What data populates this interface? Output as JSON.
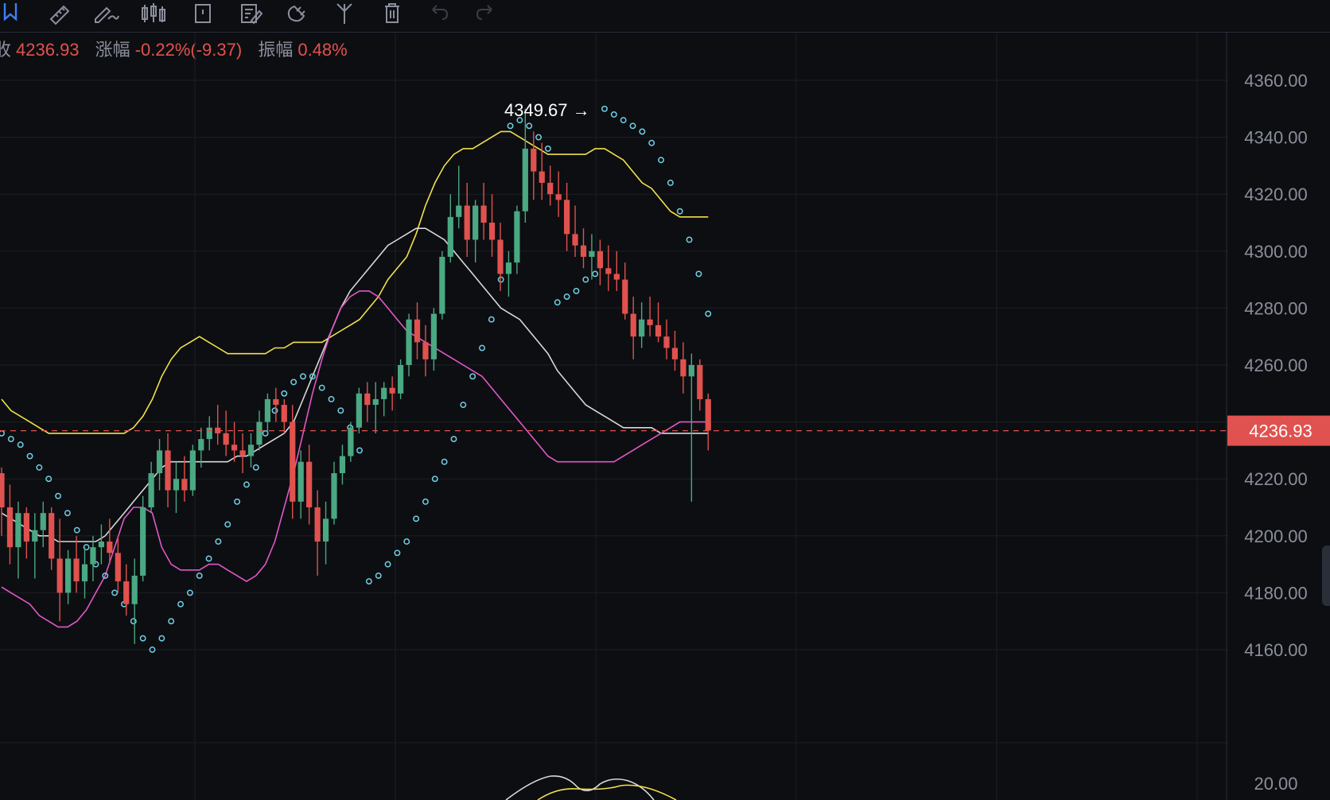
{
  "toolbar": {
    "icons": [
      "bookmark-icon",
      "ruler-icon",
      "pencil-wave-icon",
      "candles-icon",
      "rectangle-icon",
      "note-edit-icon",
      "magnet-icon",
      "fork-icon",
      "trash-icon",
      "undo-icon",
      "redo-icon"
    ]
  },
  "info": {
    "close_label": "收",
    "close_value": "4236.93",
    "change_label": "涨幅",
    "change_value": "-0.22%(-9.37)",
    "amplitude_label": "振幅",
    "amplitude_value": "0.48%"
  },
  "colors": {
    "background": "#0d0e11",
    "grid": "#1c1f26",
    "up": "#4aa883",
    "down": "#e0524f",
    "upper_band": "#f2e04b",
    "middle_band": "#d8d8d8",
    "lower_band": "#e157c9",
    "sar": "#6fd0e6",
    "axis_text": "#8a8f9c",
    "price_tag": "#e0524f"
  },
  "chart_data": {
    "type": "candlestick",
    "y_axis": {
      "ticks": [
        4360,
        4340,
        4320,
        4300,
        4280,
        4260,
        4240,
        4220,
        4200,
        4180,
        4160
      ],
      "tick_labels": [
        "4360.00",
        "4340.00",
        "4320.00",
        "4300.00",
        "4280.00",
        "4260.00",
        "4220.00",
        "4200.00",
        "4180.00",
        "4160.00"
      ],
      "ylim": [
        4145,
        4375
      ],
      "position": "right"
    },
    "current_price": 4236.93,
    "current_price_label": "4236.93",
    "high_marker": {
      "value": 4349.67,
      "label": "4349.67 →"
    },
    "lower_pane": {
      "tick_label": "20.00"
    },
    "candles": [
      [
        4222,
        4224,
        4200,
        4210
      ],
      [
        4210,
        4218,
        4190,
        4196
      ],
      [
        4196,
        4212,
        4185,
        4208
      ],
      [
        4208,
        4210,
        4192,
        4198
      ],
      [
        4198,
        4208,
        4185,
        4202
      ],
      [
        4202,
        4212,
        4196,
        4208
      ],
      [
        4208,
        4210,
        4188,
        4192
      ],
      [
        4192,
        4206,
        4170,
        4180
      ],
      [
        4180,
        4195,
        4176,
        4192
      ],
      [
        4192,
        4200,
        4180,
        4184
      ],
      [
        4184,
        4196,
        4178,
        4190
      ],
      [
        4190,
        4200,
        4184,
        4196
      ],
      [
        4196,
        4204,
        4190,
        4198
      ],
      [
        4198,
        4206,
        4190,
        4194
      ],
      [
        4194,
        4200,
        4180,
        4184
      ],
      [
        4184,
        4190,
        4172,
        4176
      ],
      [
        4176,
        4192,
        4162,
        4186
      ],
      [
        4186,
        4214,
        4184,
        4210
      ],
      [
        4210,
        4226,
        4208,
        4222
      ],
      [
        4222,
        4234,
        4216,
        4230
      ],
      [
        4230,
        4236,
        4210,
        4216
      ],
      [
        4216,
        4226,
        4208,
        4220
      ],
      [
        4220,
        4228,
        4212,
        4216
      ],
      [
        4216,
        4232,
        4214,
        4230
      ],
      [
        4230,
        4238,
        4224,
        4234
      ],
      [
        4234,
        4242,
        4230,
        4238
      ],
      [
        4238,
        4246,
        4232,
        4236
      ],
      [
        4236,
        4244,
        4228,
        4232
      ],
      [
        4232,
        4240,
        4226,
        4230
      ],
      [
        4230,
        4236,
        4222,
        4228
      ],
      [
        4228,
        4236,
        4224,
        4232
      ],
      [
        4232,
        4244,
        4230,
        4240
      ],
      [
        4240,
        4250,
        4236,
        4248
      ],
      [
        4248,
        4252,
        4240,
        4246
      ],
      [
        4246,
        4248,
        4236,
        4240
      ],
      [
        4240,
        4246,
        4206,
        4212
      ],
      [
        4212,
        4230,
        4206,
        4226
      ],
      [
        4226,
        4232,
        4204,
        4210
      ],
      [
        4210,
        4216,
        4186,
        4198
      ],
      [
        4198,
        4212,
        4190,
        4206
      ],
      [
        4206,
        4226,
        4204,
        4222
      ],
      [
        4222,
        4232,
        4218,
        4228
      ],
      [
        4228,
        4240,
        4226,
        4238
      ],
      [
        4238,
        4252,
        4236,
        4250
      ],
      [
        4250,
        4254,
        4240,
        4246
      ],
      [
        4246,
        4254,
        4236,
        4248
      ],
      [
        4248,
        4254,
        4242,
        4252
      ],
      [
        4252,
        4256,
        4244,
        4250
      ],
      [
        4250,
        4262,
        4248,
        4260
      ],
      [
        4260,
        4278,
        4256,
        4276
      ],
      [
        4276,
        4282,
        4262,
        4268
      ],
      [
        4268,
        4274,
        4256,
        4262
      ],
      [
        4262,
        4280,
        4258,
        4278
      ],
      [
        4278,
        4300,
        4276,
        4298
      ],
      [
        4298,
        4320,
        4296,
        4312
      ],
      [
        4312,
        4330,
        4308,
        4316
      ],
      [
        4316,
        4324,
        4298,
        4304
      ],
      [
        4304,
        4318,
        4296,
        4316
      ],
      [
        4316,
        4324,
        4304,
        4310
      ],
      [
        4310,
        4320,
        4298,
        4304
      ],
      [
        4304,
        4310,
        4286,
        4292
      ],
      [
        4292,
        4300,
        4284,
        4296
      ],
      [
        4296,
        4316,
        4292,
        4314
      ],
      [
        4314,
        4350,
        4310,
        4336
      ],
      [
        4336,
        4342,
        4318,
        4328
      ],
      [
        4328,
        4338,
        4318,
        4324
      ],
      [
        4324,
        4330,
        4316,
        4320
      ],
      [
        4320,
        4328,
        4312,
        4318
      ],
      [
        4318,
        4324,
        4300,
        4306
      ],
      [
        4306,
        4316,
        4298,
        4302
      ],
      [
        4302,
        4308,
        4294,
        4298
      ],
      [
        4298,
        4306,
        4290,
        4300
      ],
      [
        4300,
        4304,
        4288,
        4294
      ],
      [
        4294,
        4302,
        4286,
        4292
      ],
      [
        4292,
        4300,
        4286,
        4290
      ],
      [
        4290,
        4296,
        4276,
        4278
      ],
      [
        4278,
        4284,
        4262,
        4270
      ],
      [
        4270,
        4282,
        4266,
        4276
      ],
      [
        4276,
        4284,
        4270,
        4274
      ],
      [
        4274,
        4282,
        4268,
        4270
      ],
      [
        4270,
        4276,
        4262,
        4266
      ],
      [
        4266,
        4272,
        4258,
        4262
      ],
      [
        4262,
        4268,
        4250,
        4256
      ],
      [
        4256,
        4264,
        4212,
        4260
      ],
      [
        4260,
        4262,
        4244,
        4248
      ],
      [
        4248,
        4250,
        4230,
        4237
      ]
    ],
    "upper_band": [
      4248,
      4244,
      4242,
      4240,
      4238,
      4236,
      4236,
      4236,
      4236,
      4236,
      4236,
      4236,
      4236,
      4236,
      4238,
      4242,
      4248,
      4256,
      4262,
      4266,
      4268,
      4270,
      4268,
      4266,
      4264,
      4264,
      4264,
      4264,
      4264,
      4266,
      4266,
      4268,
      4268,
      4268,
      4268,
      4270,
      4272,
      4274,
      4276,
      4280,
      4284,
      4290,
      4294,
      4298,
      4306,
      4316,
      4324,
      4330,
      4334,
      4336,
      4336,
      4338,
      4340,
      4342,
      4342,
      4340,
      4338,
      4336,
      4334,
      4334,
      4334,
      4334,
      4334,
      4336,
      4336,
      4334,
      4332,
      4328,
      4324,
      4322,
      4318,
      4314,
      4312,
      4312,
      4312,
      4312
    ],
    "middle_band": [
      4208,
      4206,
      4204,
      4202,
      4200,
      4200,
      4198,
      4198,
      4198,
      4198,
      4198,
      4200,
      4204,
      4208,
      4212,
      4216,
      4220,
      4224,
      4226,
      4226,
      4226,
      4226,
      4226,
      4226,
      4226,
      4228,
      4228,
      4230,
      4232,
      4234,
      4236,
      4240,
      4248,
      4256,
      4264,
      4272,
      4280,
      4286,
      4290,
      4294,
      4298,
      4302,
      4304,
      4306,
      4308,
      4308,
      4306,
      4304,
      4300,
      4296,
      4292,
      4288,
      4284,
      4280,
      4278,
      4276,
      4272,
      4268,
      4264,
      4258,
      4254,
      4250,
      4246,
      4244,
      4242,
      4240,
      4238,
      4238,
      4238,
      4238,
      4236,
      4236,
      4236,
      4236,
      4236,
      4236
    ],
    "lower_band": [
      4182,
      4180,
      4178,
      4176,
      4172,
      4170,
      4168,
      4168,
      4170,
      4174,
      4180,
      4186,
      4196,
      4206,
      4210,
      4210,
      4208,
      4196,
      4190,
      4188,
      4188,
      4188,
      4190,
      4190,
      4188,
      4186,
      4184,
      4186,
      4190,
      4198,
      4210,
      4222,
      4236,
      4250,
      4262,
      4272,
      4280,
      4284,
      4286,
      4286,
      4284,
      4280,
      4276,
      4272,
      4270,
      4268,
      4266,
      4264,
      4262,
      4260,
      4258,
      4256,
      4252,
      4248,
      4244,
      4240,
      4236,
      4232,
      4228,
      4226,
      4226,
      4226,
      4226,
      4226,
      4226,
      4226,
      4228,
      4230,
      4232,
      4234,
      4236,
      4238,
      4240,
      4240,
      4240,
      4240
    ],
    "sar": [
      4236,
      4234,
      4232,
      4228,
      4224,
      4220,
      4214,
      4208,
      4202,
      4196,
      4190,
      4186,
      4180,
      4176,
      4170,
      4164,
      4160,
      4164,
      4170,
      4176,
      4180,
      4186,
      4192,
      4198,
      4204,
      4212,
      4218,
      4224,
      4236,
      4244,
      4250,
      4254,
      4256,
      4256,
      4252,
      4248,
      4244,
      4238,
      4230,
      4184,
      4186,
      4190,
      4194,
      4198,
      4206,
      4212,
      4220,
      4226,
      4234,
      4246,
      4256,
      4266,
      4276,
      4290,
      4344,
      4346,
      4344,
      4340,
      4336,
      4282,
      4284,
      4286,
      4290,
      4292,
      4350,
      4348,
      4346,
      4344,
      4342,
      4338,
      4332,
      4324,
      4314,
      4304,
      4292,
      4278
    ]
  }
}
